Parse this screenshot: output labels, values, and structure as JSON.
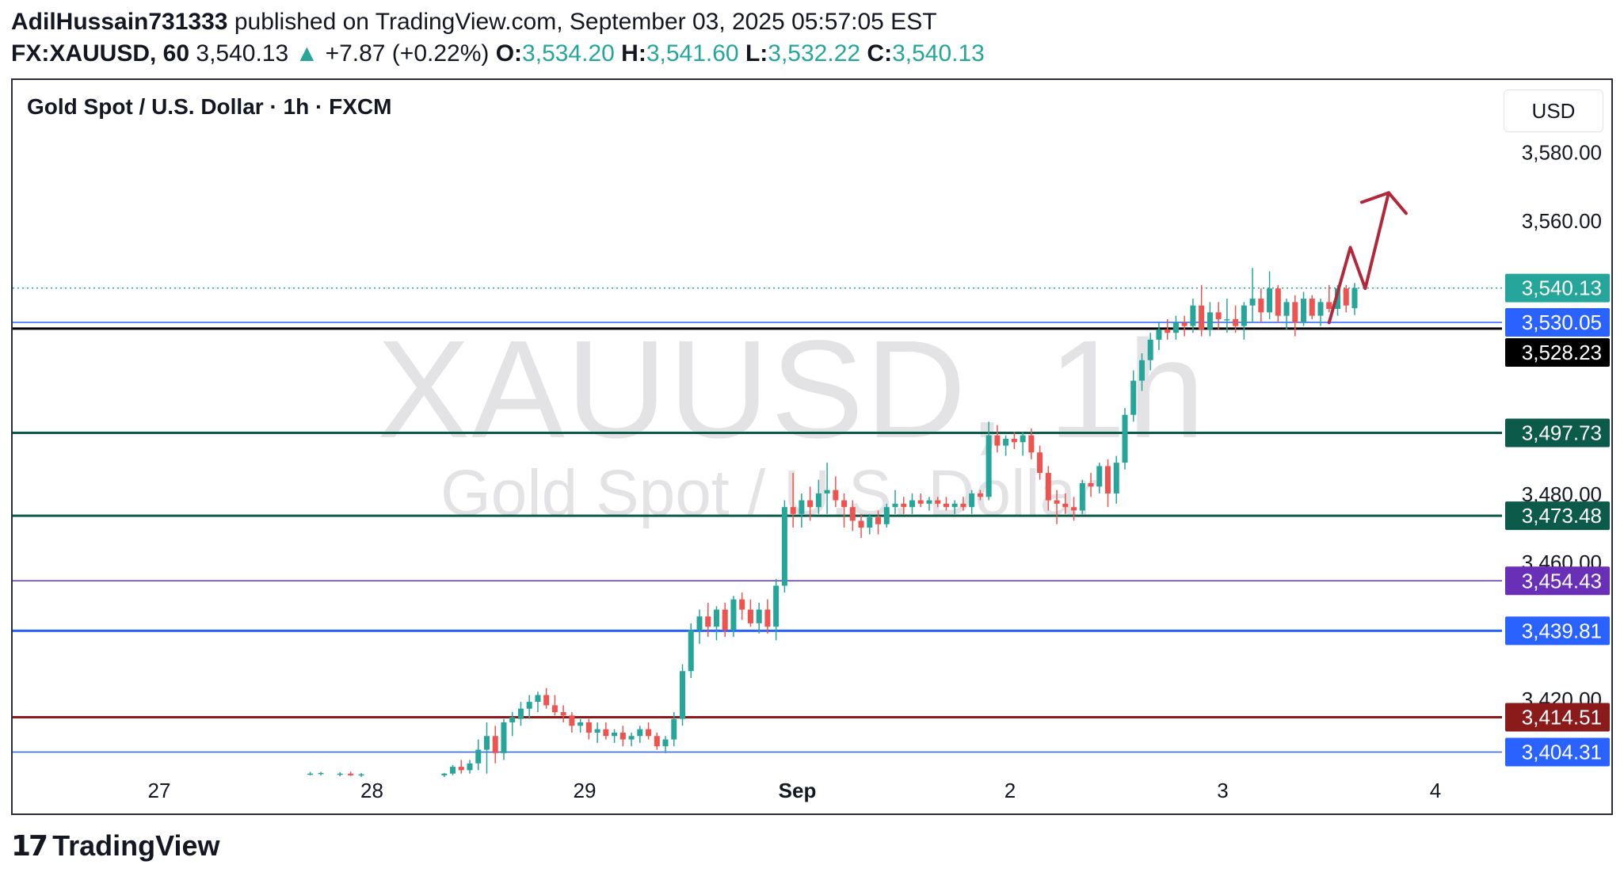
{
  "header": {
    "author": "AdilHussain731333",
    "published_text": "published on TradingView.com, September 03, 2025 05:57:05 EST",
    "symbol_interval": "FX:XAUUSD, 60",
    "last_price": "3,540.13",
    "change_arrow": "▲",
    "change": "+7.87 (+0.22%)",
    "o_label": "O:",
    "o_value": "3,534.20",
    "h_label": "H:",
    "h_value": "3,541.60",
    "l_label": "L:",
    "l_value": "3,532.22",
    "c_label": "C:",
    "c_value": "3,540.13"
  },
  "legend": {
    "title": "Gold Spot / U.S. Dollar · 1h · FXCM"
  },
  "currency_button": "USD",
  "watermark": {
    "symbol": "XAUUSD, 1h",
    "description": "Gold Spot / U.S. Dollar"
  },
  "footer": {
    "logo_mark": "17",
    "logo_text": "TradingView"
  },
  "colors": {
    "up": "#26a69a",
    "down": "#ef5350",
    "grid_text": "#131722",
    "last_price_line": "#26a69a",
    "arrow": "#b2283b"
  },
  "icons": [
    "up-triangle-icon",
    "tradingview-logo-icon",
    "projection-arrow-icon"
  ],
  "chart_data": {
    "type": "candlestick",
    "interval": "1h",
    "ylim": [
      3397,
      3601
    ],
    "y_ticks": [
      "3,580.00",
      "3,560.00",
      "3,480.00",
      "3,460.00",
      "3,420.00"
    ],
    "x_ticks": [
      {
        "label": "27",
        "day": 0,
        "bold": false
      },
      {
        "label": "28",
        "day": 1,
        "bold": false
      },
      {
        "label": "29",
        "day": 2,
        "bold": false
      },
      {
        "label": "Sep",
        "day": 3,
        "bold": true
      },
      {
        "label": "2",
        "day": 4,
        "bold": false
      },
      {
        "label": "3",
        "day": 5,
        "bold": false
      },
      {
        "label": "4",
        "day": 6,
        "bold": false
      }
    ],
    "last_price": 3540.13,
    "horizontal_lines": [
      {
        "value": 3530.05,
        "label": "3,530.05",
        "color": "#2962ff",
        "width": 1.5
      },
      {
        "value": 3528.23,
        "label": "3,528.23",
        "color": "#000000",
        "width": 3
      },
      {
        "value": 3497.73,
        "label": "3,497.73",
        "color": "#0b5a4a",
        "width": 3
      },
      {
        "value": 3473.48,
        "label": "3,473.48",
        "color": "#0b5a4a",
        "width": 3
      },
      {
        "value": 3454.43,
        "label": "3,454.43",
        "color": "#6a2fb7",
        "width": 1.5
      },
      {
        "value": 3439.81,
        "label": "3,439.81",
        "color": "#2962ff",
        "width": 3
      },
      {
        "value": 3414.51,
        "label": "3,414.51",
        "color": "#8b1a1a",
        "width": 3
      },
      {
        "value": 3404.31,
        "label": "3,404.31",
        "color": "#2962ff",
        "width": 1.5
      }
    ],
    "projection_arrow": [
      [
        5.5,
        3530
      ],
      [
        5.6,
        3552
      ],
      [
        5.67,
        3540
      ],
      [
        5.78,
        3568
      ]
    ],
    "candles": [
      [
        0.71,
        3398.0,
        3398.5,
        3397.5,
        3398.0
      ],
      [
        0.76,
        3398.0,
        3398.5,
        3397.5,
        3398.2
      ],
      [
        0.85,
        3397.8,
        3398.4,
        3397.2,
        3398.0
      ],
      [
        0.9,
        3398.0,
        3398.6,
        3397.3,
        3397.5
      ],
      [
        0.95,
        3397.5,
        3398.2,
        3397.0,
        3397.8
      ],
      [
        1.34,
        3397.5,
        3398.2,
        3397.0,
        3398.0
      ],
      [
        1.38,
        3398.0,
        3400.5,
        3397.5,
        3400.0
      ],
      [
        1.42,
        3400.0,
        3402.0,
        3398.0,
        3399.0
      ],
      [
        1.46,
        3399.0,
        3402.0,
        3398.0,
        3401.0
      ],
      [
        1.5,
        3401.0,
        3408.0,
        3399.0,
        3405.0
      ],
      [
        1.54,
        3405.0,
        3413.0,
        3398.0,
        3409.0
      ],
      [
        1.58,
        3409.0,
        3412.0,
        3401.0,
        3404.0
      ],
      [
        1.62,
        3404.0,
        3414.0,
        3402.0,
        3413.0
      ],
      [
        1.66,
        3413.0,
        3416.0,
        3409.0,
        3414.5
      ],
      [
        1.7,
        3414.0,
        3419.0,
        3412.0,
        3417.0
      ],
      [
        1.74,
        3417.0,
        3421.0,
        3414.0,
        3419.0
      ],
      [
        1.78,
        3419.0,
        3422.0,
        3416.0,
        3421.0
      ],
      [
        1.82,
        3421.0,
        3423.0,
        3417.0,
        3418.0
      ],
      [
        1.86,
        3418.0,
        3421.0,
        3415.0,
        3416.0
      ],
      [
        1.9,
        3416.0,
        3418.0,
        3413.0,
        3415.0
      ],
      [
        1.94,
        3415.0,
        3416.0,
        3410.0,
        3412.0
      ],
      [
        1.98,
        3412.0,
        3414.0,
        3410.0,
        3413.0
      ],
      [
        2.02,
        3413.0,
        3414.0,
        3408.0,
        3410.0
      ],
      [
        2.06,
        3410.0,
        3413.0,
        3407.0,
        3411.0
      ],
      [
        2.1,
        3411.0,
        3413.0,
        3408.0,
        3409.0
      ],
      [
        2.14,
        3409.0,
        3411.0,
        3407.0,
        3410.0
      ],
      [
        2.18,
        3410.0,
        3412.0,
        3406.0,
        3408.0
      ],
      [
        2.22,
        3408.0,
        3410.0,
        3406.0,
        3409.0
      ],
      [
        2.26,
        3409.0,
        3412.0,
        3407.0,
        3411.0
      ],
      [
        2.3,
        3411.0,
        3413.0,
        3408.0,
        3409.0
      ],
      [
        2.34,
        3409.0,
        3410.0,
        3405.0,
        3406.0
      ],
      [
        2.38,
        3406.0,
        3409.0,
        3404.0,
        3408.0
      ],
      [
        2.42,
        3408.0,
        3416.0,
        3406.0,
        3414.0
      ],
      [
        2.46,
        3414.0,
        3430.0,
        3412.0,
        3428.0
      ],
      [
        2.5,
        3428.0,
        3442.0,
        3426.0,
        3440.0
      ],
      [
        2.54,
        3440.0,
        3446.0,
        3436.0,
        3444.0
      ],
      [
        2.58,
        3444.0,
        3448.0,
        3438.0,
        3441.0
      ],
      [
        2.62,
        3441.0,
        3447.0,
        3437.0,
        3446.0
      ],
      [
        2.66,
        3446.0,
        3448.0,
        3438.0,
        3440.0
      ],
      [
        2.7,
        3440.0,
        3450.0,
        3438.0,
        3449.0
      ],
      [
        2.74,
        3449.0,
        3451.0,
        3443.0,
        3446.0
      ],
      [
        2.78,
        3446.0,
        3449.0,
        3441.0,
        3442.0
      ],
      [
        2.82,
        3442.0,
        3448.0,
        3439.0,
        3446.0
      ],
      [
        2.86,
        3446.0,
        3449.0,
        3439.0,
        3441.0
      ],
      [
        2.9,
        3441.0,
        3455.0,
        3437.0,
        3453.0
      ],
      [
        2.94,
        3453.0,
        3478.0,
        3451.0,
        3476.0
      ],
      [
        2.98,
        3476.0,
        3486.0,
        3470.0,
        3474.0
      ],
      [
        3.02,
        3474.0,
        3480.0,
        3470.0,
        3478.0
      ],
      [
        3.06,
        3478.0,
        3482.0,
        3472.0,
        3476.0
      ],
      [
        3.1,
        3476.0,
        3484.0,
        3474.0,
        3480.0
      ],
      [
        3.14,
        3480.0,
        3489.0,
        3474.0,
        3481.0
      ],
      [
        3.18,
        3481.0,
        3485.0,
        3476.0,
        3478.0
      ],
      [
        3.22,
        3478.0,
        3480.0,
        3470.0,
        3476.0
      ],
      [
        3.26,
        3476.0,
        3478.0,
        3469.0,
        3472.0
      ],
      [
        3.3,
        3472.0,
        3474.0,
        3467.0,
        3470.0
      ],
      [
        3.34,
        3470.0,
        3474.0,
        3468.0,
        3473.0
      ],
      [
        3.38,
        3473.0,
        3475.0,
        3468.0,
        3471.0
      ],
      [
        3.42,
        3471.0,
        3477.0,
        3470.0,
        3476.0
      ],
      [
        3.46,
        3476.0,
        3481.0,
        3474.0,
        3477.0
      ],
      [
        3.5,
        3477.0,
        3479.0,
        3474.0,
        3476.0
      ],
      [
        3.54,
        3476.0,
        3480.0,
        3474.0,
        3478.0
      ],
      [
        3.58,
        3478.0,
        3480.0,
        3476.0,
        3477.0
      ],
      [
        3.62,
        3477.0,
        3479.0,
        3475.0,
        3478.0
      ],
      [
        3.66,
        3478.0,
        3479.0,
        3476.0,
        3477.0
      ],
      [
        3.7,
        3477.0,
        3479.0,
        3475.0,
        3476.0
      ],
      [
        3.74,
        3476.0,
        3478.0,
        3474.0,
        3477.0
      ],
      [
        3.78,
        3477.0,
        3479.0,
        3475.0,
        3476.0
      ],
      [
        3.82,
        3476.0,
        3481.0,
        3474.0,
        3480.0
      ],
      [
        3.86,
        3480.0,
        3481.0,
        3478.0,
        3479.0
      ],
      [
        3.9,
        3479.0,
        3501.0,
        3478.0,
        3497.0
      ],
      [
        3.94,
        3497.0,
        3500.0,
        3492.0,
        3494.0
      ],
      [
        3.98,
        3494.0,
        3497.0,
        3491.0,
        3496.0
      ],
      [
        4.02,
        3496.0,
        3498.0,
        3493.0,
        3495.0
      ],
      [
        4.06,
        3495.0,
        3498.0,
        3491.0,
        3497.0
      ],
      [
        4.1,
        3497.0,
        3499.0,
        3490.0,
        3492.0
      ],
      [
        4.14,
        3492.0,
        3494.0,
        3484.0,
        3486.0
      ],
      [
        4.18,
        3486.0,
        3488.0,
        3475.0,
        3478.0
      ],
      [
        4.22,
        3478.0,
        3481.0,
        3471.0,
        3477.0
      ],
      [
        4.26,
        3477.0,
        3480.0,
        3474.0,
        3476.0
      ],
      [
        4.3,
        3476.0,
        3479.0,
        3472.0,
        3475.0
      ],
      [
        4.34,
        3475.0,
        3484.0,
        3474.0,
        3483.0
      ],
      [
        4.38,
        3483.0,
        3486.0,
        3479.0,
        3482.0
      ],
      [
        4.42,
        3482.0,
        3489.0,
        3480.0,
        3488.0
      ],
      [
        4.46,
        3488.0,
        3490.0,
        3476.0,
        3480.0
      ],
      [
        4.5,
        3480.0,
        3491.0,
        3477.0,
        3489.0
      ],
      [
        4.54,
        3489.0,
        3505.0,
        3487.0,
        3503.0
      ],
      [
        4.58,
        3503.0,
        3516.0,
        3501.0,
        3513.0
      ],
      [
        4.62,
        3513.0,
        3521.0,
        3510.0,
        3519.0
      ],
      [
        4.66,
        3519.0,
        3527.0,
        3516.0,
        3525.0
      ],
      [
        4.7,
        3525.0,
        3530.0,
        3522.0,
        3528.0
      ],
      [
        4.74,
        3528.0,
        3531.0,
        3525.0,
        3527.0
      ],
      [
        4.78,
        3527.0,
        3532.0,
        3525.0,
        3530.0
      ],
      [
        4.82,
        3530.0,
        3532.0,
        3526.0,
        3529.0
      ],
      [
        4.86,
        3529.0,
        3537.0,
        3527.0,
        3535.0
      ],
      [
        4.9,
        3535.0,
        3541.0,
        3526.0,
        3528.0
      ],
      [
        4.94,
        3528.0,
        3536.0,
        3526.0,
        3533.0
      ],
      [
        4.98,
        3533.0,
        3536.0,
        3528.0,
        3531.0
      ],
      [
        5.02,
        3531.0,
        3537.0,
        3527.0,
        3531.0
      ],
      [
        5.06,
        3531.0,
        3535.0,
        3527.0,
        3529.0
      ],
      [
        5.1,
        3529.0,
        3536.0,
        3525.0,
        3535.0
      ],
      [
        5.14,
        3535.0,
        3546.0,
        3530.0,
        3537.0
      ],
      [
        5.18,
        3537.0,
        3540.0,
        3530.0,
        3533.0
      ],
      [
        5.22,
        3533.0,
        3545.0,
        3531.0,
        3540.0
      ],
      [
        5.26,
        3540.0,
        3541.0,
        3530.0,
        3532.0
      ],
      [
        5.3,
        3532.0,
        3537.0,
        3528.0,
        3536.0
      ],
      [
        5.34,
        3536.0,
        3538.0,
        3526.0,
        3530.0
      ],
      [
        5.38,
        3530.0,
        3539.0,
        3529.0,
        3537.0
      ],
      [
        5.42,
        3537.0,
        3538.0,
        3531.0,
        3532.0
      ],
      [
        5.46,
        3532.0,
        3537.0,
        3529.0,
        3536.0
      ],
      [
        5.5,
        3536.0,
        3541.0,
        3533.0,
        3534.0
      ],
      [
        5.54,
        3534.0,
        3541.0,
        3532.0,
        3540.0
      ],
      [
        5.58,
        3540.0,
        3541.0,
        3533.0,
        3535.0
      ],
      [
        5.62,
        3534.2,
        3541.6,
        3532.22,
        3540.13
      ]
    ]
  }
}
